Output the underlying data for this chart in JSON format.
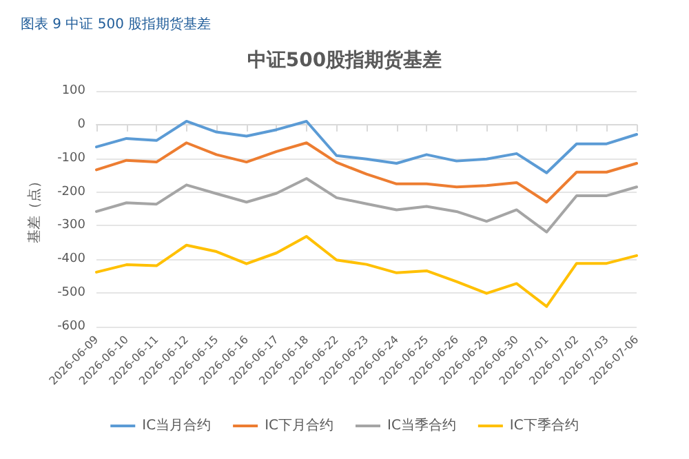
{
  "chart_data": {
    "type": "line",
    "title": "中证500股指期货基差",
    "subtitle": "图表 9 中证 500 股指期货基差",
    "ylabel": "基差（点）",
    "categories": [
      "2026-06-09",
      "2026-06-10",
      "2026-06-11",
      "2026-06-12",
      "2026-06-15",
      "2026-06-16",
      "2026-06-17",
      "2026-06-18",
      "2026-06-22",
      "2026-06-23",
      "2026-06-24",
      "2026-06-25",
      "2026-06-26",
      "2026-06-29",
      "2026-06-30",
      "2026-07-01",
      "2026-07-02",
      "2026-07-03",
      "2026-07-06"
    ],
    "series": [
      {
        "name": "IC当月合约",
        "color": "#5b9bd5",
        "values": [
          -66,
          -41,
          -47,
          10,
          -22,
          -34,
          -15,
          10,
          -92,
          -102,
          -115,
          -89,
          -108,
          -102,
          -86,
          -143,
          -57,
          -57,
          -29
        ]
      },
      {
        "name": "IC下月合约",
        "color": "#ed7d31",
        "values": [
          -134,
          -106,
          -111,
          -54,
          -89,
          -111,
          -80,
          -54,
          -112,
          -147,
          -176,
          -176,
          -185,
          -181,
          -172,
          -230,
          -141,
          -141,
          -115
        ]
      },
      {
        "name": "IC当季合约",
        "color": "#a5a5a5",
        "values": [
          -258,
          -232,
          -236,
          -179,
          -205,
          -230,
          -204,
          -160,
          -217,
          -235,
          -253,
          -243,
          -258,
          -287,
          -253,
          -319,
          -211,
          -211,
          -185
        ]
      },
      {
        "name": "IC下季合约",
        "color": "#ffc000",
        "values": [
          -438,
          -416,
          -419,
          -358,
          -377,
          -413,
          -381,
          -332,
          -402,
          -415,
          -440,
          -434,
          -466,
          -501,
          -472,
          -540,
          -412,
          -412,
          -389
        ]
      }
    ],
    "ylim": [
      -600,
      100
    ],
    "yticks": [
      -600,
      -500,
      -400,
      -300,
      -200,
      -100,
      0,
      100
    ],
    "grid": "y",
    "legend": "bottom",
    "marker": "none",
    "line_style": "solid"
  }
}
